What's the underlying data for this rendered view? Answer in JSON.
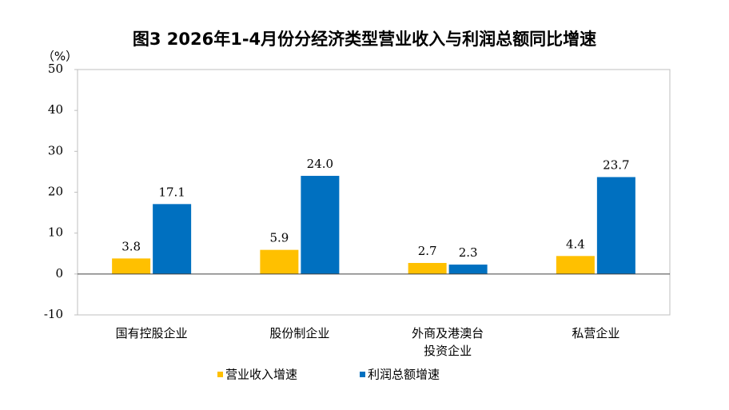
{
  "chart_data": {
    "type": "bar",
    "title": "图3 2026年1-4月份分经济类型营业收入与利润总额同比增速",
    "y_label": "（%）",
    "categories": [
      "国有控股企业",
      "股份制企业",
      "外商及港澳台\n投资企业",
      "私营企业"
    ],
    "series": [
      {
        "name": "营业收入增速",
        "color": "#FFC000",
        "values": [
          3.8,
          5.9,
          2.7,
          4.4
        ],
        "value_labels": [
          "3.8",
          "5.9",
          "2.7",
          "4.4"
        ]
      },
      {
        "name": "利润总额增速",
        "color": "#0070C0",
        "values": [
          17.1,
          24.0,
          2.3,
          23.7
        ],
        "value_labels": [
          "17.1",
          "24.0",
          "2.3",
          "23.7"
        ]
      }
    ],
    "ylim": [
      -10,
      50
    ],
    "yticks": [
      -10,
      0,
      10,
      20,
      30,
      40,
      50
    ],
    "grid": false,
    "legend": "bottom"
  }
}
